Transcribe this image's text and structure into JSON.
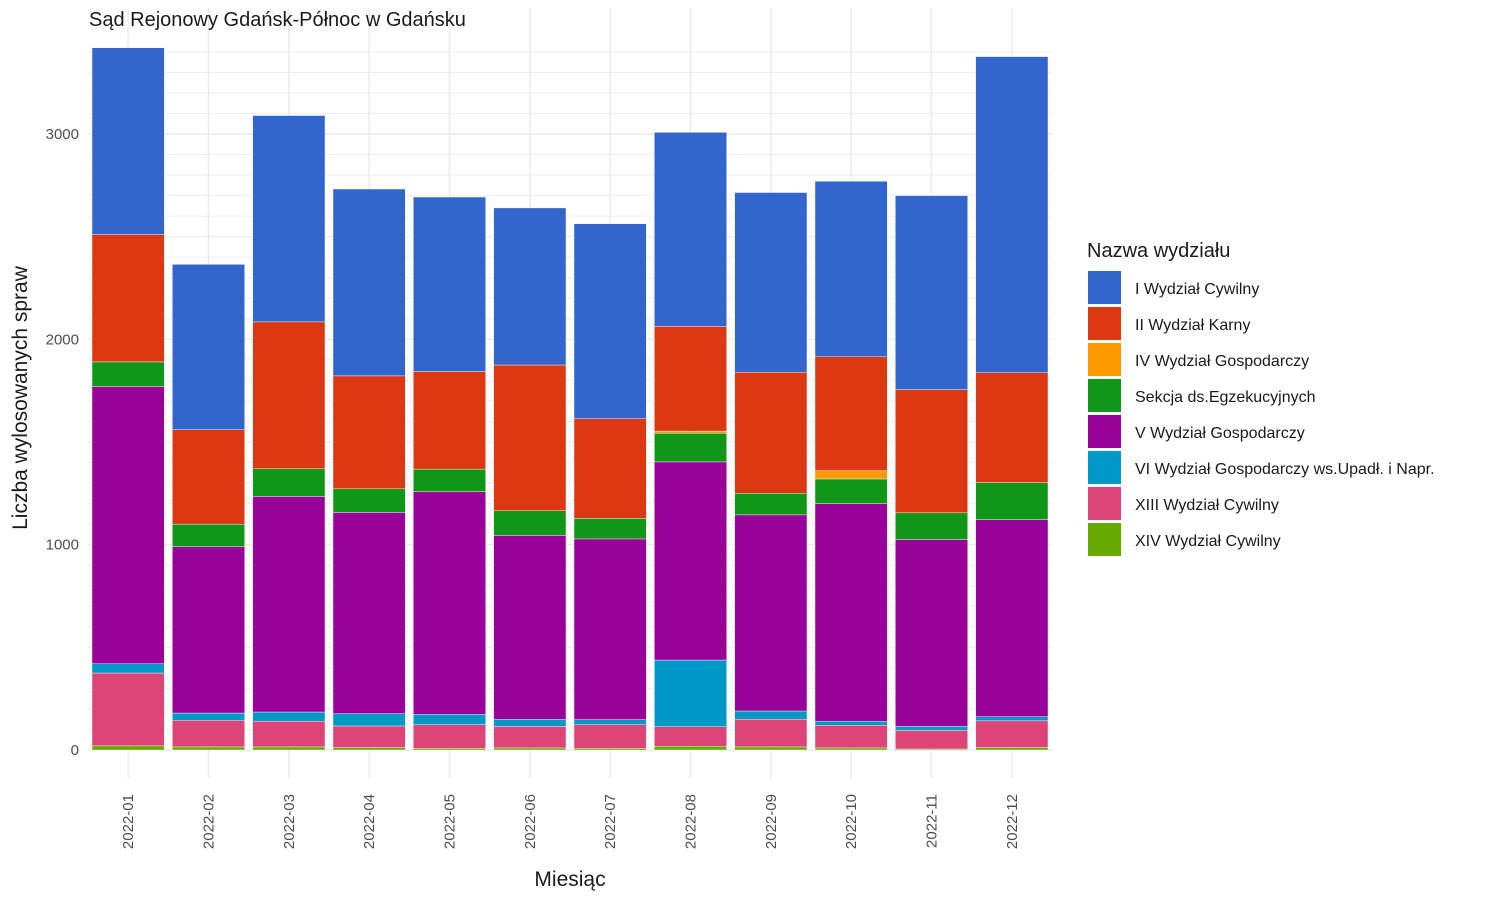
{
  "chart_data": {
    "type": "bar",
    "stacked": true,
    "title": "Sąd Rejonowy Gdańsk-Północ w Gdańsku",
    "xlabel": "Miesiąc",
    "ylabel": "Liczba wylosowanych spraw",
    "ylim": [
      0,
      3450
    ],
    "yticks": [
      0,
      1000,
      2000,
      3000
    ],
    "grid": true,
    "legend_title": "Nazwa wydziału",
    "legend_position": "right",
    "categories": [
      "2022-01",
      "2022-02",
      "2022-03",
      "2022-04",
      "2022-05",
      "2022-06",
      "2022-07",
      "2022-08",
      "2022-09",
      "2022-10",
      "2022-11",
      "2022-12"
    ],
    "series": [
      {
        "name": "XIV Wydział Cywilny",
        "color": "#66aa00",
        "values": [
          20,
          15,
          15,
          12,
          8,
          10,
          8,
          18,
          15,
          10,
          5,
          12
        ]
      },
      {
        "name": "XIII Wydział Cywilny",
        "color": "#dd4477",
        "values": [
          355,
          130,
          125,
          105,
          115,
          105,
          115,
          95,
          135,
          110,
          90,
          130
        ]
      },
      {
        "name": "VI Wydział Gospodarczy ws.Upadł. i Napr.",
        "color": "#0099c6",
        "values": [
          45,
          35,
          45,
          60,
          50,
          35,
          25,
          325,
          40,
          20,
          20,
          20
        ]
      },
      {
        "name": "V Wydział Gospodarczy",
        "color": "#990099",
        "values": [
          1350,
          810,
          1050,
          980,
          1085,
          895,
          880,
          965,
          955,
          1060,
          910,
          960
        ]
      },
      {
        "name": "Sekcja ds.Egzekucyjnych",
        "color": "#109618",
        "values": [
          120,
          110,
          135,
          115,
          110,
          120,
          100,
          140,
          105,
          120,
          130,
          180
        ]
      },
      {
        "name": "IV Wydział Gospodarczy",
        "color": "#ff9900",
        "values": [
          0,
          0,
          0,
          0,
          0,
          0,
          0,
          10,
          0,
          40,
          0,
          0
        ]
      },
      {
        "name": "II Wydział Karny",
        "color": "#dc3912",
        "values": [
          620,
          460,
          715,
          550,
          475,
          710,
          485,
          510,
          590,
          555,
          600,
          535
        ]
      },
      {
        "name": "I Wydział Cywilny",
        "color": "#3366cc",
        "values": [
          910,
          805,
          1005,
          910,
          850,
          765,
          950,
          945,
          875,
          855,
          945,
          1540
        ]
      }
    ]
  }
}
